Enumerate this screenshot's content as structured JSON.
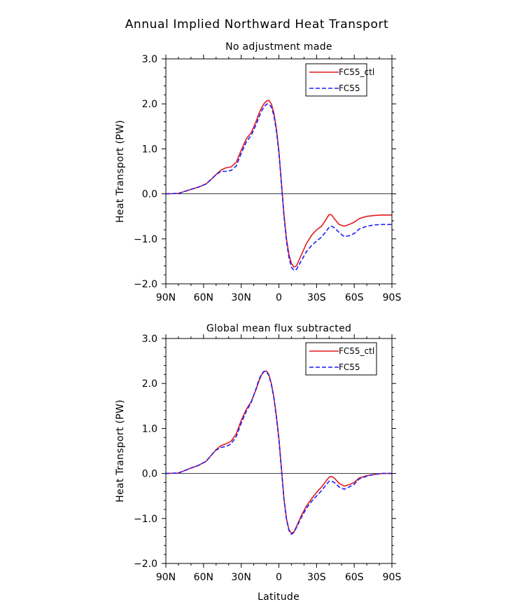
{
  "figure": {
    "title": "Annual Implied Northward Heat Transport",
    "xlabel": "Latitude"
  },
  "chart_data": [
    {
      "type": "line",
      "title": "No adjustment made",
      "ylabel": "Heat Transport (PW)",
      "xlabel": "",
      "xlim": [
        90,
        -90
      ],
      "ylim": [
        -2.0,
        3.0
      ],
      "x_ticks": [
        90,
        60,
        30,
        0,
        -30,
        -60,
        -90
      ],
      "x_tick_labels": [
        "90N",
        "60N",
        "30N",
        "0",
        "30S",
        "60S",
        "90S"
      ],
      "y_ticks": [
        3.0,
        2.0,
        1.0,
        0.0,
        -1.0,
        -2.0
      ],
      "y_tick_labels": [
        "3.0",
        "2.0",
        "1.0",
        "0.0",
        "−1.0",
        "−2.0"
      ],
      "zero_line": true,
      "legend_position": "top-right",
      "series": [
        {
          "name": "FC55_ctl",
          "color": "#e31a1c",
          "dash": "solid",
          "x": [
            90,
            80,
            70,
            64,
            58,
            54,
            50,
            46,
            42,
            38,
            34,
            30,
            26,
            22,
            18,
            16,
            14,
            12,
            10,
            8,
            6,
            4,
            2,
            0,
            -2,
            -4,
            -6,
            -8,
            -10,
            -12,
            -14,
            -18,
            -22,
            -26,
            -30,
            -34,
            -38,
            -40,
            -42,
            -44,
            -48,
            -52,
            -56,
            -60,
            -64,
            -70,
            -76,
            -82,
            -90
          ],
          "values": [
            0.0,
            0.01,
            0.1,
            0.15,
            0.22,
            0.32,
            0.43,
            0.53,
            0.58,
            0.6,
            0.7,
            0.97,
            1.22,
            1.36,
            1.62,
            1.78,
            1.9,
            2.0,
            2.06,
            2.08,
            2.0,
            1.8,
            1.45,
            0.95,
            0.25,
            -0.45,
            -1.0,
            -1.35,
            -1.55,
            -1.63,
            -1.6,
            -1.35,
            -1.1,
            -0.92,
            -0.8,
            -0.72,
            -0.55,
            -0.46,
            -0.47,
            -0.55,
            -0.68,
            -0.72,
            -0.68,
            -0.63,
            -0.55,
            -0.5,
            -0.48,
            -0.47,
            -0.47
          ]
        },
        {
          "name": "FC55",
          "color": "#1c1cff",
          "dash": "dashed",
          "x": [
            90,
            80,
            70,
            64,
            58,
            54,
            50,
            46,
            42,
            38,
            34,
            30,
            26,
            22,
            18,
            16,
            14,
            12,
            10,
            8,
            6,
            4,
            2,
            0,
            -2,
            -4,
            -6,
            -8,
            -10,
            -12,
            -14,
            -18,
            -22,
            -26,
            -30,
            -34,
            -38,
            -40,
            -42,
            -44,
            -48,
            -52,
            -56,
            -60,
            -64,
            -70,
            -76,
            -82,
            -90
          ],
          "values": [
            0.0,
            0.01,
            0.1,
            0.15,
            0.22,
            0.32,
            0.43,
            0.5,
            0.5,
            0.52,
            0.62,
            0.9,
            1.15,
            1.3,
            1.55,
            1.7,
            1.83,
            1.93,
            1.99,
            2.0,
            1.93,
            1.75,
            1.4,
            0.92,
            0.22,
            -0.48,
            -1.05,
            -1.42,
            -1.63,
            -1.7,
            -1.68,
            -1.48,
            -1.28,
            -1.15,
            -1.05,
            -0.96,
            -0.82,
            -0.74,
            -0.72,
            -0.75,
            -0.86,
            -0.95,
            -0.93,
            -0.88,
            -0.78,
            -0.72,
            -0.69,
            -0.68,
            -0.68
          ]
        }
      ]
    },
    {
      "type": "line",
      "title": "Global mean flux subtracted",
      "ylabel": "Heat Transport (PW)",
      "xlabel": "Latitude",
      "xlim": [
        90,
        -90
      ],
      "ylim": [
        -2.0,
        3.0
      ],
      "x_ticks": [
        90,
        60,
        30,
        0,
        -30,
        -60,
        -90
      ],
      "x_tick_labels": [
        "90N",
        "60N",
        "30N",
        "0",
        "30S",
        "60S",
        "90S"
      ],
      "y_ticks": [
        3.0,
        2.0,
        1.0,
        0.0,
        -1.0,
        -2.0
      ],
      "y_tick_labels": [
        "3.0",
        "2.0",
        "1.0",
        "0.0",
        "−1.0",
        "−2.0"
      ],
      "zero_line": true,
      "legend_position": "top-right",
      "series": [
        {
          "name": "FC55_ctl",
          "color": "#e31a1c",
          "dash": "solid",
          "x": [
            90,
            80,
            70,
            64,
            58,
            54,
            50,
            46,
            42,
            38,
            34,
            30,
            26,
            22,
            18,
            16,
            14,
            12,
            10,
            8,
            6,
            4,
            2,
            0,
            -2,
            -4,
            -6,
            -8,
            -10,
            -12,
            -14,
            -18,
            -22,
            -26,
            -30,
            -34,
            -38,
            -40,
            -42,
            -44,
            -48,
            -52,
            -56,
            -60,
            -64,
            -70,
            -76,
            -82,
            -90
          ],
          "values": [
            0.0,
            0.01,
            0.12,
            0.18,
            0.27,
            0.4,
            0.53,
            0.62,
            0.66,
            0.72,
            0.88,
            1.18,
            1.42,
            1.6,
            1.88,
            2.05,
            2.18,
            2.26,
            2.28,
            2.2,
            2.0,
            1.7,
            1.28,
            0.78,
            0.12,
            -0.55,
            -1.0,
            -1.25,
            -1.33,
            -1.3,
            -1.18,
            -0.93,
            -0.72,
            -0.56,
            -0.42,
            -0.3,
            -0.15,
            -0.08,
            -0.07,
            -0.1,
            -0.22,
            -0.28,
            -0.25,
            -0.2,
            -0.1,
            -0.05,
            -0.02,
            0.0,
            0.0
          ]
        },
        {
          "name": "FC55",
          "color": "#1c1cff",
          "dash": "dashed",
          "x": [
            90,
            80,
            70,
            64,
            58,
            54,
            50,
            46,
            42,
            38,
            34,
            30,
            26,
            22,
            18,
            16,
            14,
            12,
            10,
            8,
            6,
            4,
            2,
            0,
            -2,
            -4,
            -6,
            -8,
            -10,
            -12,
            -14,
            -18,
            -22,
            -26,
            -30,
            -34,
            -38,
            -40,
            -42,
            -44,
            -48,
            -52,
            -56,
            -60,
            -64,
            -70,
            -76,
            -82,
            -90
          ],
          "values": [
            0.0,
            0.01,
            0.12,
            0.18,
            0.27,
            0.4,
            0.52,
            0.58,
            0.6,
            0.66,
            0.82,
            1.12,
            1.38,
            1.58,
            1.9,
            2.08,
            2.2,
            2.27,
            2.27,
            2.18,
            1.98,
            1.68,
            1.25,
            0.75,
            0.1,
            -0.57,
            -1.02,
            -1.27,
            -1.35,
            -1.31,
            -1.2,
            -0.97,
            -0.77,
            -0.62,
            -0.5,
            -0.38,
            -0.24,
            -0.17,
            -0.17,
            -0.2,
            -0.3,
            -0.35,
            -0.3,
            -0.24,
            -0.12,
            -0.06,
            -0.02,
            0.0,
            0.0
          ]
        }
      ]
    }
  ]
}
